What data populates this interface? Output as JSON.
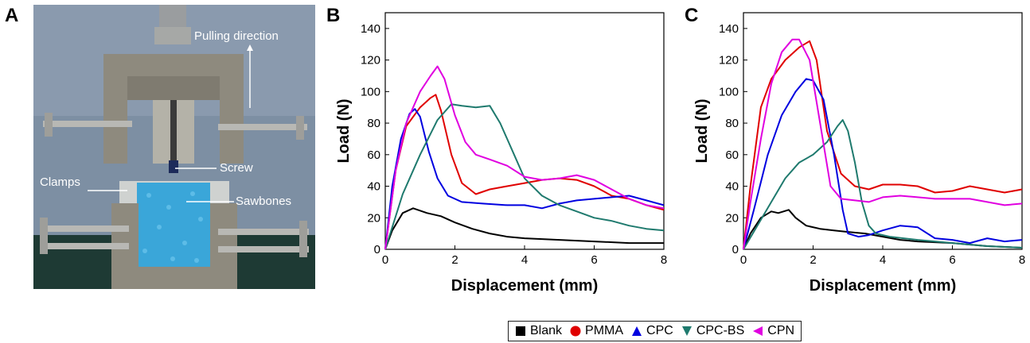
{
  "panels": {
    "a": "A",
    "b": "B",
    "c": "C"
  },
  "photo": {
    "labels": {
      "pulling": "Pulling direction",
      "screw": "Screw",
      "clamps": "Clamps",
      "sawbones": "Sawbones"
    }
  },
  "legend": [
    {
      "name": "Blank",
      "color": "#000000",
      "marker": "square"
    },
    {
      "name": "PMMA",
      "color": "#e00000",
      "marker": "circle"
    },
    {
      "name": "CPC",
      "color": "#0000e0",
      "marker": "triangle-up"
    },
    {
      "name": "CPC-BS",
      "color": "#1f7a6e",
      "marker": "triangle-down"
    },
    {
      "name": "CPN",
      "color": "#e000e0",
      "marker": "triangle-left"
    }
  ],
  "chart_data": [
    {
      "panel": "B",
      "type": "line",
      "xlabel": "Displacement (mm)",
      "ylabel": "Load (N)",
      "xlim": [
        0,
        8
      ],
      "ylim": [
        0,
        150
      ],
      "xticks": [
        0,
        2,
        4,
        6,
        8
      ],
      "yticks": [
        0,
        20,
        40,
        60,
        80,
        100,
        120,
        140
      ],
      "series": [
        {
          "name": "Blank",
          "color": "#000000",
          "points": [
            [
              0,
              0
            ],
            [
              0.2,
              12
            ],
            [
              0.5,
              23
            ],
            [
              0.8,
              26
            ],
            [
              1.2,
              23
            ],
            [
              1.6,
              21
            ],
            [
              2,
              17
            ],
            [
              2.5,
              13
            ],
            [
              3,
              10
            ],
            [
              3.5,
              8
            ],
            [
              4,
              7
            ],
            [
              5,
              6
            ],
            [
              6,
              5
            ],
            [
              7,
              4
            ],
            [
              8,
              4
            ]
          ]
        },
        {
          "name": "PMMA",
          "color": "#e00000",
          "points": [
            [
              0,
              0
            ],
            [
              0.3,
              50
            ],
            [
              0.6,
              78
            ],
            [
              1,
              90
            ],
            [
              1.3,
              96
            ],
            [
              1.45,
              98
            ],
            [
              1.6,
              88
            ],
            [
              1.9,
              60
            ],
            [
              2.2,
              42
            ],
            [
              2.6,
              35
            ],
            [
              3,
              38
            ],
            [
              3.5,
              40
            ],
            [
              4,
              42
            ],
            [
              4.5,
              44
            ],
            [
              5,
              45
            ],
            [
              5.5,
              44
            ],
            [
              6,
              40
            ],
            [
              6.5,
              34
            ],
            [
              7,
              32
            ],
            [
              7.5,
              28
            ],
            [
              8,
              25
            ]
          ]
        },
        {
          "name": "CPC",
          "color": "#0000e0",
          "points": [
            [
              0,
              0
            ],
            [
              0.2,
              40
            ],
            [
              0.45,
              70
            ],
            [
              0.7,
              86
            ],
            [
              0.85,
              89
            ],
            [
              1,
              84
            ],
            [
              1.25,
              62
            ],
            [
              1.5,
              45
            ],
            [
              1.8,
              34
            ],
            [
              2.2,
              30
            ],
            [
              2.8,
              29
            ],
            [
              3.5,
              28
            ],
            [
              4,
              28
            ],
            [
              4.5,
              26
            ],
            [
              5,
              29
            ],
            [
              5.5,
              31
            ],
            [
              6,
              32
            ],
            [
              6.5,
              33
            ],
            [
              7,
              34
            ],
            [
              7.5,
              31
            ],
            [
              8,
              28
            ]
          ]
        },
        {
          "name": "CPC-BS",
          "color": "#1f7a6e",
          "points": [
            [
              0,
              0
            ],
            [
              0.5,
              35
            ],
            [
              1,
              60
            ],
            [
              1.5,
              82
            ],
            [
              1.9,
              92
            ],
            [
              2.2,
              91
            ],
            [
              2.6,
              90
            ],
            [
              3,
              91
            ],
            [
              3.3,
              80
            ],
            [
              3.7,
              60
            ],
            [
              4,
              45
            ],
            [
              4.5,
              34
            ],
            [
              5,
              28
            ],
            [
              5.5,
              24
            ],
            [
              6,
              20
            ],
            [
              6.5,
              18
            ],
            [
              7,
              15
            ],
            [
              7.5,
              13
            ],
            [
              8,
              12
            ]
          ]
        },
        {
          "name": "CPN",
          "color": "#e000e0",
          "points": [
            [
              0,
              0
            ],
            [
              0.3,
              50
            ],
            [
              0.6,
              80
            ],
            [
              1,
              100
            ],
            [
              1.3,
              110
            ],
            [
              1.5,
              116
            ],
            [
              1.7,
              108
            ],
            [
              2,
              85
            ],
            [
              2.3,
              68
            ],
            [
              2.6,
              60
            ],
            [
              3,
              57
            ],
            [
              3.5,
              53
            ],
            [
              4,
              46
            ],
            [
              4.5,
              44
            ],
            [
              5,
              45
            ],
            [
              5.5,
              47
            ],
            [
              6,
              44
            ],
            [
              6.5,
              38
            ],
            [
              7,
              32
            ],
            [
              7.5,
              28
            ],
            [
              8,
              26
            ]
          ]
        }
      ]
    },
    {
      "panel": "C",
      "type": "line",
      "xlabel": "Displacement (mm)",
      "ylabel": "Load (N)",
      "xlim": [
        0,
        8
      ],
      "ylim": [
        0,
        150
      ],
      "xticks": [
        0,
        2,
        4,
        6,
        8
      ],
      "yticks": [
        0,
        20,
        40,
        60,
        80,
        100,
        120,
        140
      ],
      "series": [
        {
          "name": "Blank",
          "color": "#000000",
          "points": [
            [
              0,
              0
            ],
            [
              0.2,
              10
            ],
            [
              0.5,
              20
            ],
            [
              0.8,
              24
            ],
            [
              1,
              23
            ],
            [
              1.3,
              25
            ],
            [
              1.5,
              20
            ],
            [
              1.8,
              15
            ],
            [
              2.2,
              13
            ],
            [
              2.6,
              12
            ],
            [
              3,
              11
            ],
            [
              3.5,
              10
            ],
            [
              4,
              8
            ],
            [
              4.5,
              6
            ],
            [
              5,
              5
            ],
            [
              6,
              4
            ],
            [
              7,
              2
            ],
            [
              8,
              1
            ]
          ]
        },
        {
          "name": "PMMA",
          "color": "#e00000",
          "points": [
            [
              0,
              0
            ],
            [
              0.2,
              40
            ],
            [
              0.5,
              90
            ],
            [
              0.8,
              108
            ],
            [
              1.2,
              120
            ],
            [
              1.6,
              128
            ],
            [
              1.9,
              132
            ],
            [
              2.1,
              120
            ],
            [
              2.4,
              75
            ],
            [
              2.8,
              48
            ],
            [
              3.2,
              40
            ],
            [
              3.6,
              38
            ],
            [
              4,
              41
            ],
            [
              4.5,
              41
            ],
            [
              5,
              40
            ],
            [
              5.5,
              36
            ],
            [
              6,
              37
            ],
            [
              6.5,
              40
            ],
            [
              7,
              38
            ],
            [
              7.5,
              36
            ],
            [
              8,
              38
            ]
          ]
        },
        {
          "name": "CPC",
          "color": "#0000e0",
          "points": [
            [
              0,
              0
            ],
            [
              0.3,
              25
            ],
            [
              0.7,
              60
            ],
            [
              1.1,
              85
            ],
            [
              1.5,
              100
            ],
            [
              1.8,
              108
            ],
            [
              2,
              107
            ],
            [
              2.3,
              95
            ],
            [
              2.6,
              60
            ],
            [
              2.85,
              25
            ],
            [
              3,
              10
            ],
            [
              3.3,
              8
            ],
            [
              3.6,
              9
            ],
            [
              4,
              12
            ],
            [
              4.5,
              15
            ],
            [
              5,
              14
            ],
            [
              5.5,
              7
            ],
            [
              6,
              6
            ],
            [
              6.5,
              4
            ],
            [
              7,
              7
            ],
            [
              7.5,
              5
            ],
            [
              8,
              6
            ]
          ]
        },
        {
          "name": "CPC-BS",
          "color": "#1f7a6e",
          "points": [
            [
              0,
              0
            ],
            [
              0.4,
              15
            ],
            [
              0.8,
              30
            ],
            [
              1.2,
              45
            ],
            [
              1.6,
              55
            ],
            [
              2,
              60
            ],
            [
              2.4,
              68
            ],
            [
              2.7,
              78
            ],
            [
              2.85,
              82
            ],
            [
              3,
              75
            ],
            [
              3.2,
              55
            ],
            [
              3.4,
              30
            ],
            [
              3.6,
              15
            ],
            [
              3.8,
              10
            ],
            [
              4.2,
              8
            ],
            [
              5,
              6
            ],
            [
              6,
              4
            ],
            [
              7,
              2
            ],
            [
              8,
              1
            ]
          ]
        },
        {
          "name": "CPN",
          "color": "#e000e0",
          "points": [
            [
              0,
              0
            ],
            [
              0.2,
              30
            ],
            [
              0.5,
              70
            ],
            [
              0.8,
              105
            ],
            [
              1.1,
              125
            ],
            [
              1.4,
              133
            ],
            [
              1.6,
              133
            ],
            [
              1.9,
              120
            ],
            [
              2.2,
              80
            ],
            [
              2.5,
              40
            ],
            [
              2.8,
              32
            ],
            [
              3.2,
              31
            ],
            [
              3.6,
              30
            ],
            [
              4,
              33
            ],
            [
              4.5,
              34
            ],
            [
              5,
              33
            ],
            [
              5.5,
              32
            ],
            [
              6,
              32
            ],
            [
              6.5,
              32
            ],
            [
              7,
              30
            ],
            [
              7.5,
              28
            ],
            [
              8,
              29
            ]
          ]
        }
      ]
    }
  ]
}
